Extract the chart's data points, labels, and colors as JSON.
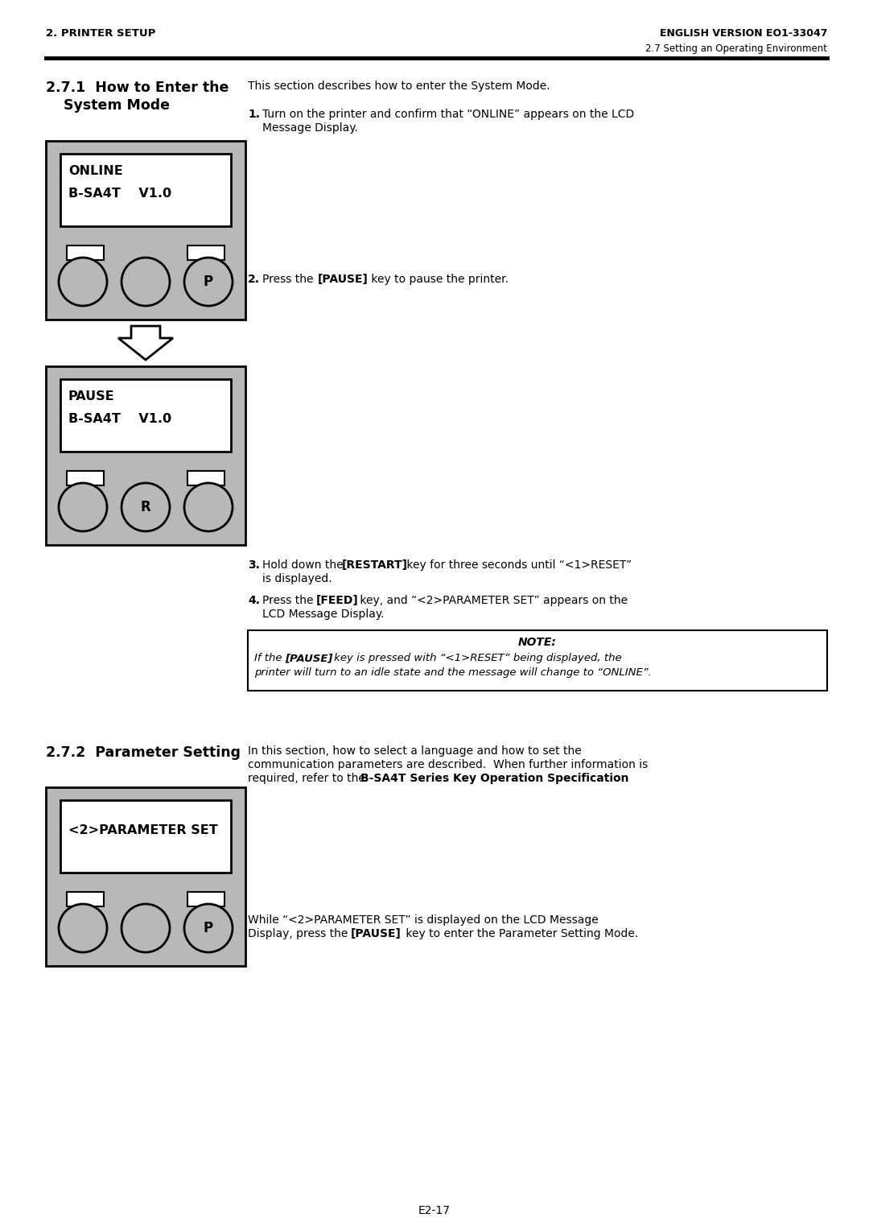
{
  "header_left": "2. PRINTER SETUP",
  "header_right": "ENGLISH VERSION EO1-33047",
  "subheader_right": "2.7 Setting an Operating Environment",
  "section1_title1": "2.7.1  How to Enter the",
  "section1_title2": "System Mode",
  "section1_intro": "This section describes how to enter the System Mode.",
  "lcd1_line1": "ONLINE",
  "lcd1_line2": "B-SA4T    V1.0",
  "lcd2_line1": "PAUSE",
  "lcd2_line2": "B-SA4T    V1.0",
  "lcd3_line1": "<2>PARAMETER SET",
  "section2_title": "2.7.2  Parameter Setting",
  "note_title": "NOTE:",
  "footer": "E2-17",
  "bg_color": "#ffffff",
  "panel_color": "#b8b8b8",
  "text_color": "#000000"
}
